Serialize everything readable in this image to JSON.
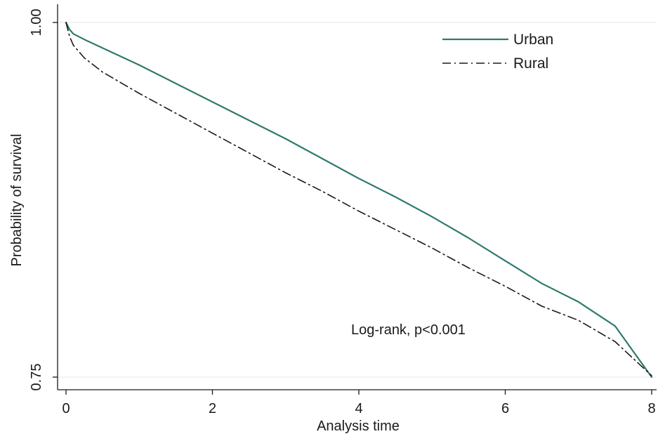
{
  "chart_data": {
    "type": "line",
    "title": "",
    "xlabel": "Analysis time",
    "ylabel": "Probability of survival",
    "xlim": [
      0,
      8
    ],
    "ylim": [
      0.75,
      1.0
    ],
    "x_ticks": [
      0,
      2,
      4,
      6,
      8
    ],
    "x_tick_labels": [
      "0",
      "2",
      "4",
      "6",
      "8"
    ],
    "y_ticks": [
      0.75,
      1.0
    ],
    "y_tick_labels": [
      "0.75",
      "1.00"
    ],
    "grid": "horizontal lines at y ticks",
    "legend_position": "top-right",
    "annotation": "Log-rank, p<0.001",
    "series": [
      {
        "name": "Urban",
        "color": "#2e7a6e",
        "line_style": "solid",
        "x": [
          0,
          0.05,
          0.1,
          0.25,
          0.5,
          1,
          1.5,
          2,
          2.5,
          3,
          3.5,
          4,
          4.5,
          5,
          5.5,
          6,
          6.5,
          7,
          7.5,
          8
        ],
        "y": [
          1.0,
          0.995,
          0.992,
          0.988,
          0.982,
          0.97,
          0.957,
          0.944,
          0.931,
          0.918,
          0.904,
          0.89,
          0.877,
          0.863,
          0.848,
          0.832,
          0.816,
          0.803,
          0.786,
          0.75
        ]
      },
      {
        "name": "Rural",
        "color": "#1a1a1a",
        "line_style": "dash-dot",
        "x": [
          0,
          0.05,
          0.1,
          0.25,
          0.5,
          1,
          1.5,
          2,
          2.5,
          3,
          3.5,
          4,
          4.5,
          5,
          5.5,
          6,
          6.5,
          7,
          7.5,
          8
        ],
        "y": [
          1.0,
          0.99,
          0.984,
          0.975,
          0.965,
          0.95,
          0.936,
          0.922,
          0.908,
          0.894,
          0.881,
          0.867,
          0.854,
          0.841,
          0.827,
          0.814,
          0.8,
          0.79,
          0.775,
          0.751
        ]
      }
    ]
  }
}
